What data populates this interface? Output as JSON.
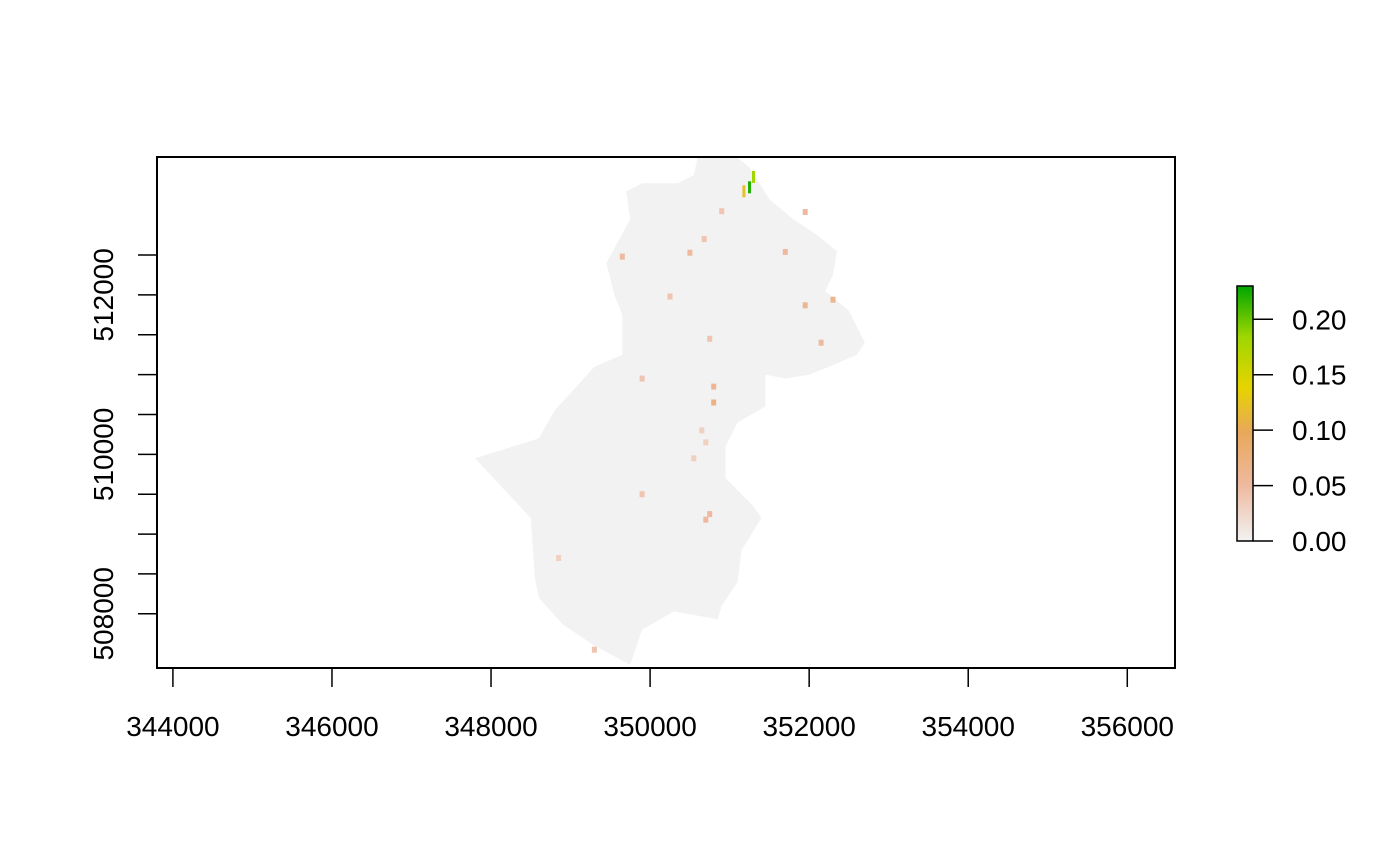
{
  "chart_data": {
    "type": "raster",
    "x_axis": {
      "ticks": [
        344000,
        346000,
        348000,
        350000,
        352000,
        354000,
        356000
      ],
      "tick_labels": [
        "344000",
        "346000",
        "348000",
        "350000",
        "352000",
        "354000",
        "356000"
      ],
      "range": [
        343800,
        356600
      ]
    },
    "y_axis": {
      "ticks": [
        507500,
        508000,
        508500,
        509000,
        509500,
        510000,
        510500,
        511000,
        511500,
        512000,
        512500,
        513000
      ],
      "labeled_ticks": [
        508000,
        510000,
        512000
      ],
      "tick_labels": [
        "508000",
        "510000",
        "512000"
      ],
      "range": [
        507320,
        513730
      ]
    },
    "legend": {
      "ticks": [
        0.0,
        0.05,
        0.1,
        0.15,
        0.2
      ],
      "tick_labels": [
        "0.00",
        "0.05",
        "0.10",
        "0.15",
        "0.20"
      ],
      "range": [
        0.0,
        0.23
      ],
      "placement": "right",
      "colors": [
        "#f2f2f2",
        "#eeb99f",
        "#e8a85a",
        "#e6d400",
        "#a0d600",
        "#00a600"
      ]
    },
    "background_value": 0.0,
    "region_outline": [
      [
        351100,
        513720
      ],
      [
        351250,
        513600
      ],
      [
        351500,
        513200
      ],
      [
        351800,
        512950
      ],
      [
        352100,
        512750
      ],
      [
        352350,
        512550
      ],
      [
        352300,
        512250
      ],
      [
        352200,
        512050
      ],
      [
        352500,
        511800
      ],
      [
        352600,
        511600
      ],
      [
        352700,
        511400
      ],
      [
        352600,
        511250
      ],
      [
        352250,
        511100
      ],
      [
        352000,
        511000
      ],
      [
        351700,
        510950
      ],
      [
        351450,
        511000
      ],
      [
        351450,
        510600
      ],
      [
        351100,
        510400
      ],
      [
        350950,
        510100
      ],
      [
        350950,
        509700
      ],
      [
        351300,
        509350
      ],
      [
        351400,
        509200
      ],
      [
        351150,
        508800
      ],
      [
        351100,
        508400
      ],
      [
        350900,
        508100
      ],
      [
        350850,
        507930
      ],
      [
        350300,
        508030
      ],
      [
        349900,
        507800
      ],
      [
        349750,
        507360
      ],
      [
        349300,
        507600
      ],
      [
        348900,
        507870
      ],
      [
        348600,
        508200
      ],
      [
        348550,
        508450
      ],
      [
        348500,
        509200
      ],
      [
        347800,
        509950
      ],
      [
        348600,
        510200
      ],
      [
        348800,
        510550
      ],
      [
        349300,
        511100
      ],
      [
        349650,
        511250
      ],
      [
        349650,
        511750
      ],
      [
        349550,
        512000
      ],
      [
        349450,
        512400
      ],
      [
        349750,
        512950
      ],
      [
        349700,
        513300
      ],
      [
        349900,
        513400
      ],
      [
        350350,
        513400
      ],
      [
        350550,
        513500
      ],
      [
        350600,
        513730
      ]
    ],
    "patches": [
      {
        "x": 351250,
        "y": 513350,
        "value": 0.22
      },
      {
        "x": 351300,
        "y": 513480,
        "value": 0.18
      },
      {
        "x": 351180,
        "y": 513300,
        "value": 0.12
      },
      {
        "x": 351950,
        "y": 513040,
        "value": 0.05
      },
      {
        "x": 350900,
        "y": 513050,
        "value": 0.04
      },
      {
        "x": 350680,
        "y": 512700,
        "value": 0.04
      },
      {
        "x": 350500,
        "y": 512530,
        "value": 0.05
      },
      {
        "x": 349650,
        "y": 512480,
        "value": 0.05
      },
      {
        "x": 351700,
        "y": 512540,
        "value": 0.05
      },
      {
        "x": 350250,
        "y": 511980,
        "value": 0.04
      },
      {
        "x": 352300,
        "y": 511940,
        "value": 0.06
      },
      {
        "x": 351950,
        "y": 511870,
        "value": 0.06
      },
      {
        "x": 352150,
        "y": 511400,
        "value": 0.05
      },
      {
        "x": 350750,
        "y": 511450,
        "value": 0.04
      },
      {
        "x": 349900,
        "y": 510950,
        "value": 0.04
      },
      {
        "x": 350800,
        "y": 510850,
        "value": 0.06
      },
      {
        "x": 350800,
        "y": 510650,
        "value": 0.07
      },
      {
        "x": 350650,
        "y": 510300,
        "value": 0.03
      },
      {
        "x": 350700,
        "y": 510150,
        "value": 0.03
      },
      {
        "x": 350550,
        "y": 509950,
        "value": 0.03
      },
      {
        "x": 349900,
        "y": 509500,
        "value": 0.04
      },
      {
        "x": 350750,
        "y": 509250,
        "value": 0.05
      },
      {
        "x": 350700,
        "y": 509180,
        "value": 0.05
      },
      {
        "x": 348850,
        "y": 508700,
        "value": 0.03
      },
      {
        "x": 349300,
        "y": 507550,
        "value": 0.04
      }
    ]
  }
}
